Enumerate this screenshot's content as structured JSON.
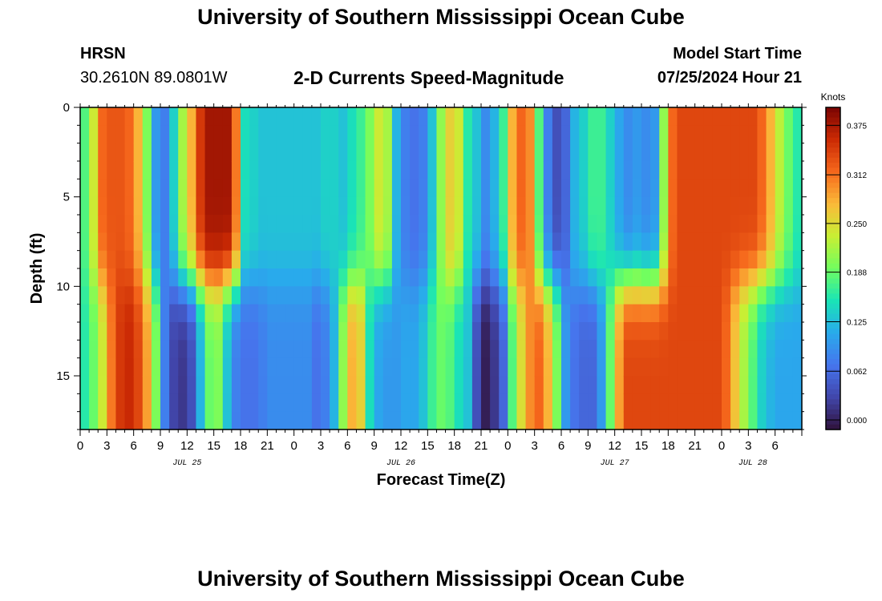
{
  "header": {
    "title": "University of Southern Mississippi Ocean Cube",
    "station": "HRSN",
    "coordinates": "30.2610N  89.0801W",
    "chart_title": "2-D Currents Speed-Magnitude",
    "model_start_label": "Model Start Time",
    "model_start_value": "07/25/2024 Hour 21"
  },
  "footer": {
    "title": "University of Southern Mississippi Ocean Cube"
  },
  "chart_data": {
    "type": "heatmap",
    "title": "2-D Currents Speed-Magnitude",
    "xlabel": "Forecast Time(Z)",
    "ylabel": "Depth (ft)",
    "x_hours": [
      0,
      81
    ],
    "y_depth_ft": [
      0,
      18
    ],
    "x_ticks": [
      "0",
      "3",
      "6",
      "9",
      "12",
      "15",
      "18",
      "21",
      "0",
      "3",
      "6",
      "9",
      "12",
      "15",
      "18",
      "21",
      "0",
      "3",
      "6",
      "9",
      "12",
      "15",
      "18",
      "21",
      "0",
      "3",
      "6"
    ],
    "y_ticks": [
      "0",
      "5",
      "10",
      "15"
    ],
    "date_labels": [
      {
        "text": "JUL 25",
        "hour": 12
      },
      {
        "text": "JUL 26",
        "hour": 36
      },
      {
        "text": "JUL 27",
        "hour": 60
      },
      {
        "text": "JUL 28",
        "hour": 75.5
      }
    ],
    "colorbar": {
      "label": "Knots",
      "min": 0,
      "max": 0.41,
      "ticks": [
        "0.000",
        "0.062",
        "0.125",
        "0.188",
        "0.250",
        "0.312",
        "0.375"
      ]
    },
    "upper_layer_speed_knots": [
      0.19,
      0.25,
      0.33,
      0.34,
      0.34,
      0.33,
      0.29,
      0.21,
      0.11,
      0.09,
      0.15,
      0.23,
      0.29,
      0.36,
      0.39,
      0.39,
      0.39,
      0.32,
      0.16,
      0.15,
      0.14,
      0.14,
      0.14,
      0.14,
      0.14,
      0.14,
      0.14,
      0.15,
      0.15,
      0.14,
      0.16,
      0.18,
      0.21,
      0.25,
      0.23,
      0.13,
      0.09,
      0.08,
      0.09,
      0.14,
      0.22,
      0.27,
      0.25,
      0.17,
      0.14,
      0.1,
      0.13,
      0.18,
      0.29,
      0.33,
      0.31,
      0.19,
      0.09,
      0.05,
      0.07,
      0.13,
      0.15,
      0.18,
      0.18,
      0.15,
      0.12,
      0.1,
      0.11,
      0.1,
      0.11,
      0.22,
      0.33,
      0.35,
      0.35,
      0.35,
      0.35,
      0.35,
      0.35,
      0.35,
      0.35,
      0.35,
      0.33,
      0.29,
      0.24,
      0.2,
      0.17
    ],
    "lower_layer_speed_knots": [
      0.17,
      0.2,
      0.25,
      0.32,
      0.36,
      0.37,
      0.35,
      0.3,
      0.21,
      0.09,
      0.04,
      0.03,
      0.05,
      0.13,
      0.2,
      0.21,
      0.14,
      0.09,
      0.08,
      0.08,
      0.09,
      0.1,
      0.1,
      0.1,
      0.1,
      0.1,
      0.08,
      0.09,
      0.13,
      0.22,
      0.29,
      0.27,
      0.16,
      0.12,
      0.11,
      0.11,
      0.12,
      0.12,
      0.14,
      0.18,
      0.2,
      0.19,
      0.16,
      0.14,
      0.05,
      0.01,
      0.03,
      0.07,
      0.19,
      0.26,
      0.31,
      0.33,
      0.29,
      0.21,
      0.11,
      0.08,
      0.07,
      0.07,
      0.11,
      0.2,
      0.3,
      0.35,
      0.35,
      0.35,
      0.35,
      0.35,
      0.35,
      0.35,
      0.35,
      0.35,
      0.35,
      0.35,
      0.33,
      0.28,
      0.23,
      0.19,
      0.15,
      0.13,
      0.12,
      0.12,
      0.12
    ]
  }
}
